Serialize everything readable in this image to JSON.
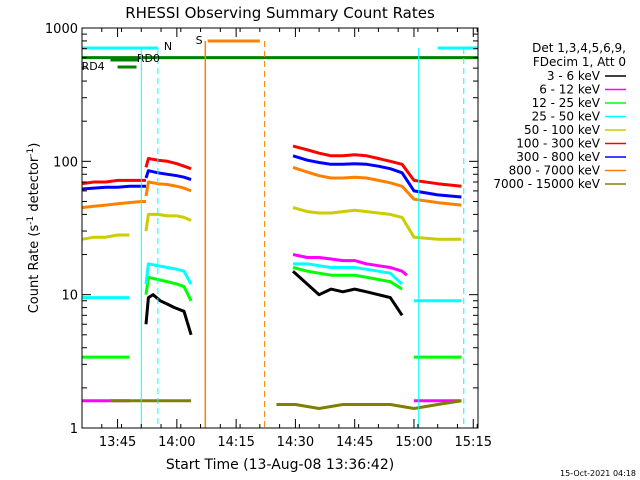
{
  "chart_data": {
    "type": "line",
    "title": "RHESSI Observing Summary Count Rates",
    "xlabel": "Start Time (13-Aug-08 13:36:42)",
    "ylabel": "Count Rate (s",
    "ylabel_sup": "-1",
    "ylabel_tail": " detector",
    "ylabel_close": ")",
    "yscale": "log",
    "ylim": [
      1,
      1000
    ],
    "xlim_minutes": [
      13.6,
      15.27
    ],
    "x_ticks": [
      {
        "t": 13.75,
        "label": "13:45"
      },
      {
        "t": 14.0,
        "label": "14:00"
      },
      {
        "t": 14.25,
        "label": "14:15"
      },
      {
        "t": 14.5,
        "label": "14:30"
      },
      {
        "t": 14.75,
        "label": "14:45"
      },
      {
        "t": 15.0,
        "label": "15:00"
      },
      {
        "t": 15.25,
        "label": "15:15"
      }
    ],
    "y_ticks": [
      {
        "v": 1,
        "label": "1"
      },
      {
        "v": 10,
        "label": "10"
      },
      {
        "v": 100,
        "label": "100"
      },
      {
        "v": 1000,
        "label": "1000"
      }
    ],
    "legend": {
      "header1": "Det 1,3,4,5,6,9,",
      "header2": "FDecim 1, Att 0",
      "placement": "right"
    },
    "series": [
      {
        "name": "3 - 6 keV",
        "color": "#000000",
        "segments": [
          {
            "x": [
              13.87,
              13.88,
              13.9,
              13.93,
              13.96,
              13.99,
              14.03,
              14.06
            ],
            "y": [
              6,
              9.5,
              10,
              9,
              8.5,
              8,
              7.5,
              5
            ]
          },
          {
            "x": [
              14.49,
              14.55,
              14.6,
              14.65,
              14.7,
              14.75,
              14.8,
              14.85,
              14.9,
              14.95
            ],
            "y": [
              15,
              12,
              10,
              11,
              10.5,
              11,
              10.5,
              10,
              9.5,
              7
            ]
          }
        ]
      },
      {
        "name": "6 - 12 keV",
        "color": "#ff00ff",
        "segments": [
          {
            "x": [
              13.6,
              13.7,
              13.8
            ],
            "y": [
              1.6,
              1.6,
              1.6
            ]
          },
          {
            "x": [
              14.49,
              14.55,
              14.6,
              14.65,
              14.7,
              14.75,
              14.8,
              14.85,
              14.9,
              14.95,
              14.97
            ],
            "y": [
              20,
              19,
              19,
              18.5,
              18,
              18,
              17,
              16.5,
              16,
              15,
              14
            ]
          },
          {
            "x": [
              15.0,
              15.1,
              15.2
            ],
            "y": [
              1.6,
              1.6,
              1.6
            ]
          }
        ]
      },
      {
        "name": "12 - 25 keV",
        "color": "#00ff00",
        "segments": [
          {
            "x": [
              13.6,
              13.7,
              13.8
            ],
            "y": [
              3.4,
              3.4,
              3.4
            ]
          },
          {
            "x": [
              13.87,
              13.88,
              13.92,
              13.96,
              14.0,
              14.03,
              14.06
            ],
            "y": [
              10,
              13.5,
              13,
              12.5,
              12,
              11.5,
              9
            ]
          },
          {
            "x": [
              14.49,
              14.55,
              14.6,
              14.65,
              14.7,
              14.75,
              14.8,
              14.85,
              14.9,
              14.95
            ],
            "y": [
              16,
              15,
              14.5,
              14,
              14,
              14,
              13.5,
              13,
              12.5,
              11
            ]
          },
          {
            "x": [
              15.0,
              15.1,
              15.2
            ],
            "y": [
              3.4,
              3.4,
              3.4
            ]
          }
        ]
      },
      {
        "name": "25 - 50 keV",
        "color": "#00ffff",
        "segments": [
          {
            "x": [
              13.6,
              13.65,
              13.7,
              13.75,
              13.8
            ],
            "y": [
              9.5,
              9.5,
              9.5,
              9.5,
              9.5
            ]
          },
          {
            "x": [
              13.87,
              13.88,
              13.92,
              13.96,
              14.0,
              14.03,
              14.06
            ],
            "y": [
              12,
              17,
              16.5,
              16,
              15.5,
              15,
              12
            ]
          },
          {
            "x": [
              14.49,
              14.55,
              14.6,
              14.65,
              14.7,
              14.75,
              14.8,
              14.85,
              14.9,
              14.95
            ],
            "y": [
              17,
              17,
              16.5,
              16,
              16,
              16,
              15.5,
              15,
              14.5,
              12
            ]
          },
          {
            "x": [
              15.0,
              15.1,
              15.2
            ],
            "y": [
              9,
              9,
              9
            ]
          }
        ]
      },
      {
        "name": "50 - 100 keV",
        "color": "#cccc00",
        "segments": [
          {
            "x": [
              13.6,
              13.65,
              13.7,
              13.75,
              13.8
            ],
            "y": [
              26,
              27,
              27,
              28,
              28
            ]
          },
          {
            "x": [
              13.87,
              13.88,
              13.92,
              13.96,
              14.0,
              14.03,
              14.06
            ],
            "y": [
              30,
              40,
              40,
              39,
              39,
              38,
              36
            ]
          },
          {
            "x": [
              14.49,
              14.55,
              14.6,
              14.65,
              14.7,
              14.75,
              14.8,
              14.85,
              14.9,
              14.95,
              15.0,
              15.1,
              15.2
            ],
            "y": [
              45,
              42,
              41,
              41,
              42,
              43,
              42,
              41,
              40,
              38,
              27,
              26,
              26
            ]
          }
        ]
      },
      {
        "name": "100 - 300 keV",
        "color": "#ff0000",
        "segments": [
          {
            "x": [
              13.6,
              13.65,
              13.7,
              13.75,
              13.8,
              13.85,
              13.87
            ],
            "y": [
              68,
              70,
              70,
              72,
              72,
              72,
              72
            ]
          },
          {
            "x": [
              13.87,
              13.88,
              13.92,
              13.96,
              14.0,
              14.03,
              14.06
            ],
            "y": [
              90,
              105,
              102,
              100,
              96,
              92,
              88
            ]
          },
          {
            "x": [
              14.49,
              14.55,
              14.6,
              14.65,
              14.7,
              14.75,
              14.8,
              14.85,
              14.9,
              14.95,
              15.0,
              15.1,
              15.2
            ],
            "y": [
              130,
              122,
              115,
              110,
              110,
              112,
              110,
              105,
              100,
              95,
              72,
              68,
              65
            ]
          }
        ]
      },
      {
        "name": "300 - 800 keV",
        "color": "#0000ff",
        "segments": [
          {
            "x": [
              13.6,
              13.65,
              13.7,
              13.75,
              13.8,
              13.85,
              13.87
            ],
            "y": [
              62,
              63,
              64,
              64,
              65,
              65,
              65
            ]
          },
          {
            "x": [
              13.87,
              13.88,
              13.92,
              13.96,
              14.0,
              14.03,
              14.06
            ],
            "y": [
              75,
              85,
              82,
              80,
              78,
              76,
              73
            ]
          },
          {
            "x": [
              14.49,
              14.55,
              14.6,
              14.65,
              14.7,
              14.75,
              14.8,
              14.85,
              14.9,
              14.95,
              15.0,
              15.1,
              15.2
            ],
            "y": [
              110,
              102,
              98,
              95,
              95,
              96,
              95,
              92,
              88,
              82,
              60,
              56,
              54
            ]
          }
        ]
      },
      {
        "name": "800 - 7000 keV",
        "color": "#ff8000",
        "segments": [
          {
            "x": [
              13.6,
              13.65,
              13.7,
              13.75,
              13.8,
              13.85,
              13.87
            ],
            "y": [
              45,
              46,
              47,
              48,
              49,
              50,
              50
            ]
          },
          {
            "x": [
              13.87,
              13.88,
              13.92,
              13.96,
              14.0,
              14.03,
              14.06
            ],
            "y": [
              55,
              70,
              68,
              67,
              65,
              63,
              60
            ]
          },
          {
            "x": [
              14.49,
              14.55,
              14.6,
              14.65,
              14.7,
              14.75,
              14.8,
              14.85,
              14.9,
              14.95,
              15.0,
              15.1,
              15.2
            ],
            "y": [
              90,
              83,
              78,
              75,
              75,
              76,
              75,
              72,
              69,
              65,
              52,
              49,
              47
            ]
          }
        ]
      },
      {
        "name": "7000 - 15000 keV",
        "color": "#808000",
        "segments": [
          {
            "x": [
              13.72,
              13.8,
              13.9,
              14.0,
              14.06
            ],
            "y": [
              1.6,
              1.6,
              1.6,
              1.6,
              1.6
            ]
          },
          {
            "x": [
              14.42,
              14.5,
              14.6,
              14.7,
              14.8,
              14.9,
              15.0,
              15.1,
              15.2
            ],
            "y": [
              1.5,
              1.5,
              1.4,
              1.5,
              1.5,
              1.5,
              1.4,
              1.5,
              1.6
            ]
          }
        ]
      }
    ],
    "annotations": {
      "N": {
        "label": "N",
        "color": "#00ffff",
        "spans": [
          [
            13.6,
            13.92
          ],
          [
            15.1,
            15.27
          ]
        ],
        "markers": [
          13.92,
          15.21
        ]
      },
      "S": {
        "label": "S",
        "color": "#ff8000",
        "span": [
          14.13,
          14.35
        ],
        "markers": [
          14.37
        ]
      },
      "RD0": {
        "label": "RD0",
        "color": "#008000",
        "span": [
          13.72,
          13.84
        ]
      },
      "RD4": {
        "label": "RD4",
        "color": "#008000",
        "span": [
          13.75,
          13.83
        ]
      },
      "attenuator": {
        "color": "#008000",
        "span": [
          13.6,
          15.27
        ],
        "level": 600
      },
      "cyan_verticals": [
        13.85,
        15.02
      ],
      "orange_verticals": [
        14.12
      ]
    }
  },
  "footer": {
    "timestamp": "15-Oct-2021 04:18"
  }
}
